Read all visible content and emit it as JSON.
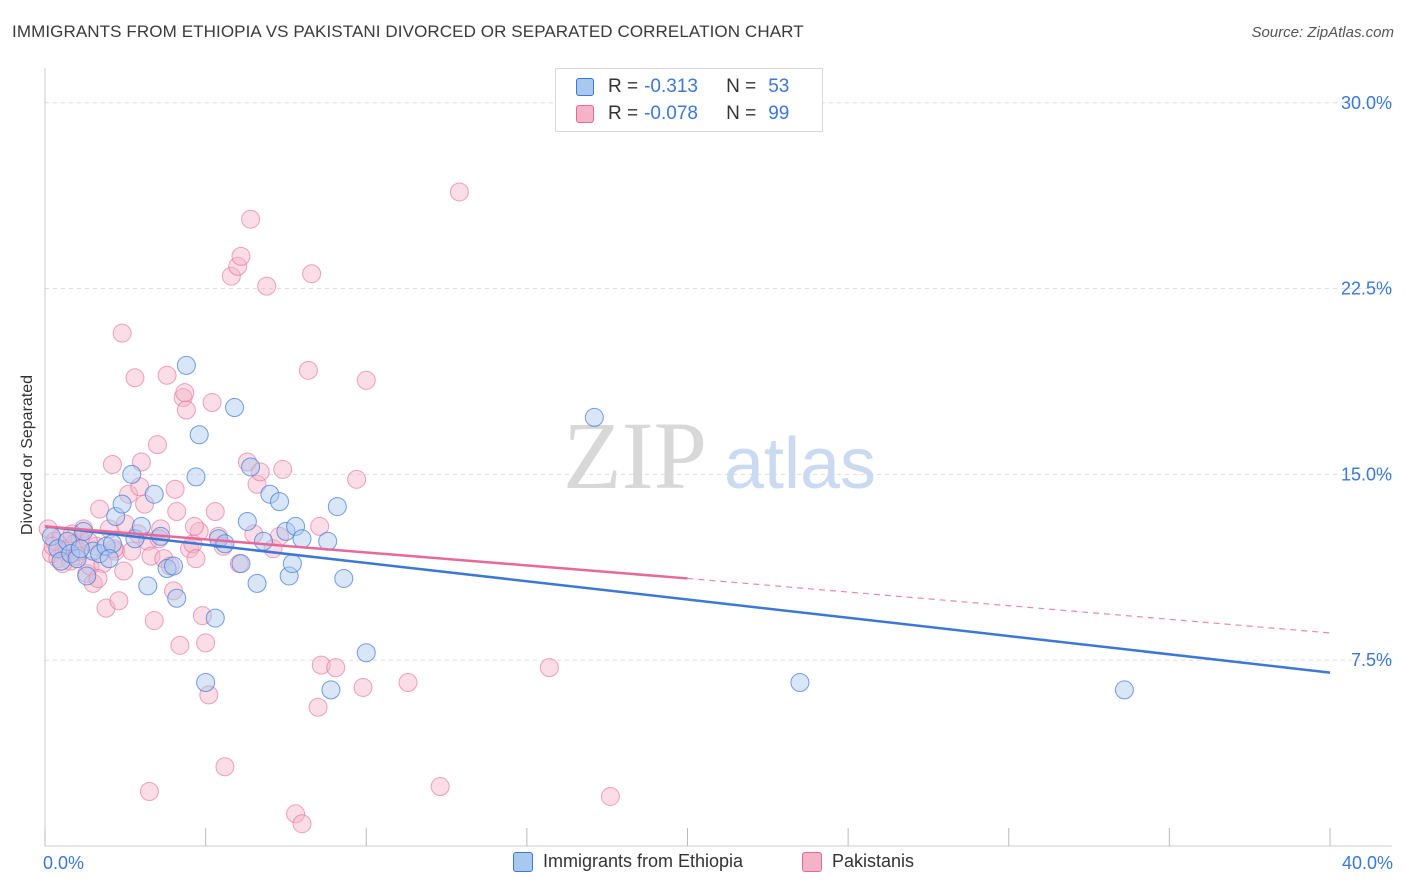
{
  "header": {
    "title": "IMMIGRANTS FROM ETHIOPIA VS PAKISTANI DIVORCED OR SEPARATED CORRELATION CHART",
    "source": "Source: ZipAtlas.com"
  },
  "watermark": {
    "zip": "ZIP",
    "atlas": "atlas"
  },
  "legend": {
    "rows": [
      {
        "r_label": "R =",
        "r_value": "-0.313",
        "n_label": "N =",
        "n_value": "53",
        "color": "#a8c8f0"
      },
      {
        "r_label": "R =",
        "r_value": "-0.078",
        "n_label": "N =",
        "n_value": "99",
        "color": "#f5b3c8"
      }
    ]
  },
  "chart_data": {
    "type": "scatter",
    "title": "IMMIGRANTS FROM ETHIOPIA VS PAKISTANI DIVORCED OR SEPARATED CORRELATION CHART",
    "xlabel": "",
    "ylabel": "Divorced or Separated",
    "xlim": [
      0,
      40
    ],
    "ylim": [
      0,
      31
    ],
    "x_tick_labels": [
      "0.0%",
      "40.0%"
    ],
    "y_ticks": [
      7.5,
      15.0,
      22.5,
      30.0
    ],
    "y_tick_labels": [
      "7.5%",
      "15.0%",
      "22.5%",
      "30.0%"
    ],
    "grid": true,
    "legend_position": "top-center",
    "colors": {
      "ethiopia": "#3b78d8",
      "ethiopia_fill": "#a8c8f0",
      "pakistani": "#e8689a",
      "pakistani_fill": "#f5b3c8"
    },
    "series": [
      {
        "name": "Immigrants from Ethiopia",
        "trend": {
          "x": [
            0,
            40
          ],
          "y": [
            12.9,
            7.0
          ]
        },
        "points": [
          [
            0.2,
            12.5
          ],
          [
            0.4,
            12.0
          ],
          [
            0.5,
            11.5
          ],
          [
            0.7,
            12.3
          ],
          [
            0.8,
            11.8
          ],
          [
            1.0,
            11.6
          ],
          [
            1.2,
            12.7
          ],
          [
            1.3,
            10.9
          ],
          [
            1.5,
            11.9
          ],
          [
            1.7,
            11.8
          ],
          [
            1.9,
            12.1
          ],
          [
            2.1,
            12.2
          ],
          [
            2.2,
            13.3
          ],
          [
            2.4,
            13.8
          ],
          [
            2.7,
            15.0
          ],
          [
            2.8,
            12.4
          ],
          [
            3.0,
            12.9
          ],
          [
            3.2,
            10.5
          ],
          [
            3.4,
            14.2
          ],
          [
            3.6,
            12.5
          ],
          [
            3.8,
            11.2
          ],
          [
            4.0,
            11.3
          ],
          [
            4.1,
            10.0
          ],
          [
            4.4,
            19.4
          ],
          [
            4.7,
            14.9
          ],
          [
            4.8,
            16.6
          ],
          [
            5.0,
            6.6
          ],
          [
            5.3,
            9.2
          ],
          [
            5.4,
            12.4
          ],
          [
            5.6,
            12.2
          ],
          [
            5.9,
            17.7
          ],
          [
            6.1,
            11.4
          ],
          [
            6.3,
            13.1
          ],
          [
            6.4,
            15.3
          ],
          [
            6.6,
            10.6
          ],
          [
            6.8,
            12.3
          ],
          [
            7.0,
            14.2
          ],
          [
            7.3,
            13.9
          ],
          [
            7.5,
            12.7
          ],
          [
            7.6,
            10.9
          ],
          [
            7.7,
            11.4
          ],
          [
            7.8,
            12.9
          ],
          [
            8.0,
            12.4
          ],
          [
            8.8,
            12.3
          ],
          [
            8.9,
            6.3
          ],
          [
            9.1,
            13.7
          ],
          [
            9.3,
            10.8
          ],
          [
            10.0,
            7.8
          ],
          [
            17.1,
            17.3
          ],
          [
            23.5,
            6.6
          ],
          [
            33.6,
            6.3
          ],
          [
            1.1,
            12.0
          ],
          [
            2.0,
            11.6
          ]
        ]
      },
      {
        "name": "Pakistanis",
        "trend": {
          "x": [
            0,
            20,
            40
          ],
          "y": [
            12.9,
            10.8,
            8.6
          ]
        },
        "points": [
          [
            0.1,
            12.8
          ],
          [
            0.2,
            11.8
          ],
          [
            0.3,
            12.3
          ],
          [
            0.4,
            11.6
          ],
          [
            0.5,
            12.5
          ],
          [
            0.6,
            11.9
          ],
          [
            0.7,
            12.0
          ],
          [
            0.8,
            11.5
          ],
          [
            0.9,
            12.2
          ],
          [
            1.0,
            11.7
          ],
          [
            1.1,
            12.4
          ],
          [
            1.2,
            12.8
          ],
          [
            1.3,
            11.0
          ],
          [
            1.4,
            11.3
          ],
          [
            1.5,
            10.6
          ],
          [
            1.6,
            12.1
          ],
          [
            1.7,
            13.6
          ],
          [
            1.8,
            11.4
          ],
          [
            1.9,
            9.6
          ],
          [
            2.0,
            12.8
          ],
          [
            2.1,
            15.4
          ],
          [
            2.2,
            11.9
          ],
          [
            2.3,
            9.9
          ],
          [
            2.4,
            20.7
          ],
          [
            2.5,
            13.0
          ],
          [
            2.6,
            14.2
          ],
          [
            2.7,
            11.9
          ],
          [
            2.8,
            18.9
          ],
          [
            2.9,
            12.6
          ],
          [
            3.0,
            15.5
          ],
          [
            3.1,
            13.8
          ],
          [
            3.2,
            12.3
          ],
          [
            3.3,
            11.7
          ],
          [
            3.4,
            9.1
          ],
          [
            3.5,
            16.2
          ],
          [
            3.6,
            12.8
          ],
          [
            3.7,
            11.6
          ],
          [
            3.8,
            19.0
          ],
          [
            3.9,
            11.3
          ],
          [
            4.0,
            10.3
          ],
          [
            4.1,
            13.5
          ],
          [
            4.2,
            8.1
          ],
          [
            4.3,
            18.1
          ],
          [
            4.4,
            17.6
          ],
          [
            4.5,
            12.0
          ],
          [
            4.6,
            12.2
          ],
          [
            4.7,
            11.6
          ],
          [
            4.8,
            12.7
          ],
          [
            4.9,
            9.3
          ],
          [
            5.0,
            8.2
          ],
          [
            5.1,
            6.1
          ],
          [
            5.2,
            17.9
          ],
          [
            5.3,
            13.5
          ],
          [
            5.4,
            12.5
          ],
          [
            5.6,
            3.2
          ],
          [
            5.8,
            23.0
          ],
          [
            6.0,
            23.4
          ],
          [
            6.1,
            23.8
          ],
          [
            6.3,
            15.5
          ],
          [
            6.4,
            25.3
          ],
          [
            6.5,
            12.6
          ],
          [
            6.6,
            14.6
          ],
          [
            6.7,
            15.1
          ],
          [
            6.9,
            22.6
          ],
          [
            7.1,
            12.0
          ],
          [
            7.3,
            12.5
          ],
          [
            7.4,
            15.2
          ],
          [
            7.8,
            1.3
          ],
          [
            8.0,
            0.9
          ],
          [
            8.2,
            19.2
          ],
          [
            8.3,
            23.1
          ],
          [
            8.5,
            5.6
          ],
          [
            8.6,
            7.3
          ],
          [
            9.7,
            14.8
          ],
          [
            9.9,
            6.4
          ],
          [
            10.0,
            18.8
          ],
          [
            11.3,
            6.6
          ],
          [
            12.3,
            2.4
          ],
          [
            12.9,
            26.4
          ],
          [
            15.7,
            7.2
          ],
          [
            17.6,
            2.0
          ],
          [
            0.25,
            12.1
          ],
          [
            0.55,
            11.4
          ],
          [
            0.85,
            12.6
          ],
          [
            1.05,
            11.9
          ],
          [
            1.35,
            12.3
          ],
          [
            1.65,
            10.8
          ],
          [
            2.15,
            12.0
          ],
          [
            2.45,
            11.1
          ],
          [
            2.95,
            14.5
          ],
          [
            3.25,
            2.2
          ],
          [
            3.55,
            12.4
          ],
          [
            4.05,
            14.4
          ],
          [
            4.35,
            18.3
          ],
          [
            4.65,
            12.9
          ],
          [
            5.55,
            12.1
          ],
          [
            6.05,
            11.4
          ],
          [
            8.55,
            12.9
          ],
          [
            9.05,
            7.2
          ]
        ]
      }
    ]
  },
  "bottom_legend": {
    "items": [
      {
        "label": "Immigrants from Ethiopia",
        "color": "#a8c8f0"
      },
      {
        "label": "Pakistanis",
        "color": "#f5b3c8"
      }
    ]
  }
}
